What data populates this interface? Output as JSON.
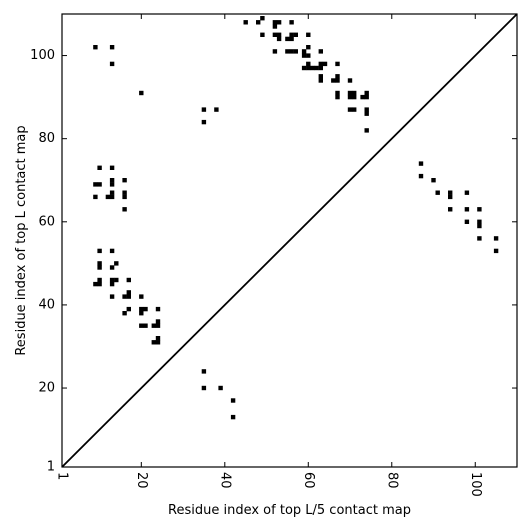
{
  "chart_data": {
    "type": "scatter",
    "xlabel": "Residue index of top L/5 contact map",
    "ylabel": "Residue index of top L contact map",
    "xlim": [
      1,
      110
    ],
    "ylim": [
      1,
      110
    ],
    "x_ticks": [
      1,
      20,
      40,
      60,
      80,
      100
    ],
    "y_ticks": [
      1,
      20,
      40,
      60,
      80,
      100
    ],
    "x_tick_rotation_deg": -90,
    "diagonal": true,
    "grid": false,
    "marker": "square",
    "marker_color": "#000000",
    "points": [
      [
        9,
        102
      ],
      [
        13,
        102
      ],
      [
        13,
        98
      ],
      [
        20,
        91
      ],
      [
        35,
        87
      ],
      [
        38,
        87
      ],
      [
        35,
        84
      ],
      [
        45,
        108
      ],
      [
        48,
        108
      ],
      [
        49,
        109
      ],
      [
        49,
        105
      ],
      [
        52,
        108
      ],
      [
        52,
        107
      ],
      [
        53,
        108
      ],
      [
        52,
        105
      ],
      [
        53,
        105
      ],
      [
        52,
        101
      ],
      [
        53,
        104
      ],
      [
        56,
        108
      ],
      [
        55,
        104
      ],
      [
        56,
        104
      ],
      [
        56,
        105
      ],
      [
        57,
        105
      ],
      [
        55,
        101
      ],
      [
        56,
        101
      ],
      [
        57,
        101
      ],
      [
        59,
        101
      ],
      [
        60,
        102
      ],
      [
        59,
        100
      ],
      [
        60,
        100
      ],
      [
        59,
        97
      ],
      [
        60,
        98
      ],
      [
        60,
        97
      ],
      [
        61,
        97
      ],
      [
        60,
        105
      ],
      [
        63,
        101
      ],
      [
        62,
        97
      ],
      [
        63,
        97
      ],
      [
        63,
        98
      ],
      [
        64,
        98
      ],
      [
        63,
        95
      ],
      [
        63,
        94
      ],
      [
        67,
        98
      ],
      [
        66,
        94
      ],
      [
        67,
        94
      ],
      [
        67,
        95
      ],
      [
        67,
        91
      ],
      [
        67,
        90
      ],
      [
        70,
        94
      ],
      [
        70,
        91
      ],
      [
        71,
        91
      ],
      [
        70,
        90
      ],
      [
        71,
        90
      ],
      [
        73,
        90
      ],
      [
        74,
        90
      ],
      [
        74,
        91
      ],
      [
        70,
        87
      ],
      [
        71,
        87
      ],
      [
        74,
        87
      ],
      [
        74,
        86
      ],
      [
        74,
        82
      ],
      [
        10,
        73
      ],
      [
        13,
        73
      ],
      [
        9,
        69
      ],
      [
        10,
        69
      ],
      [
        13,
        70
      ],
      [
        13,
        69
      ],
      [
        16,
        70
      ],
      [
        9,
        66
      ],
      [
        12,
        66
      ],
      [
        13,
        66
      ],
      [
        13,
        67
      ],
      [
        16,
        67
      ],
      [
        16,
        66
      ],
      [
        16,
        63
      ],
      [
        10,
        53
      ],
      [
        13,
        53
      ],
      [
        10,
        50
      ],
      [
        10,
        49
      ],
      [
        13,
        49
      ],
      [
        14,
        50
      ],
      [
        9,
        45
      ],
      [
        10,
        45
      ],
      [
        10,
        46
      ],
      [
        13,
        46
      ],
      [
        13,
        45
      ],
      [
        14,
        46
      ],
      [
        17,
        46
      ],
      [
        13,
        42
      ],
      [
        16,
        42
      ],
      [
        17,
        42
      ],
      [
        17,
        43
      ],
      [
        16,
        38
      ],
      [
        17,
        39
      ],
      [
        20,
        42
      ],
      [
        20,
        39
      ],
      [
        21,
        39
      ],
      [
        20,
        38
      ],
      [
        20,
        35
      ],
      [
        21,
        35
      ],
      [
        24,
        39
      ],
      [
        23,
        35
      ],
      [
        24,
        35
      ],
      [
        24,
        36
      ],
      [
        24,
        32
      ],
      [
        23,
        31
      ],
      [
        24,
        31
      ],
      [
        35,
        24
      ],
      [
        35,
        20
      ],
      [
        39,
        20
      ],
      [
        42,
        17
      ],
      [
        42,
        13
      ],
      [
        87,
        74
      ],
      [
        87,
        71
      ],
      [
        90,
        70
      ],
      [
        91,
        67
      ],
      [
        94,
        67
      ],
      [
        94,
        66
      ],
      [
        98,
        67
      ],
      [
        94,
        63
      ],
      [
        98,
        63
      ],
      [
        101,
        63
      ],
      [
        98,
        60
      ],
      [
        101,
        60
      ],
      [
        101,
        59
      ],
      [
        101,
        56
      ],
      [
        105,
        56
      ],
      [
        105,
        53
      ]
    ]
  }
}
